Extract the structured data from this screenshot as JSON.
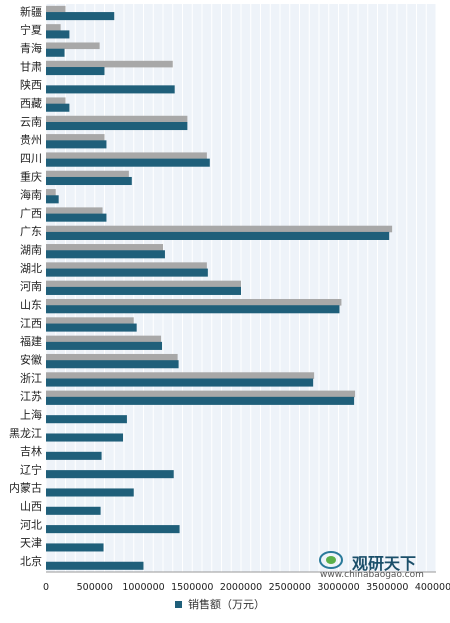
{
  "chart_data": {
    "type": "bar",
    "orientation": "horizontal",
    "categories": [
      "新疆",
      "宁夏",
      "青海",
      "甘肃",
      "陕西",
      "西藏",
      "云南",
      "贵州",
      "四川",
      "重庆",
      "海南",
      "广西",
      "广东",
      "湖南",
      "湖北",
      "河南",
      "山东",
      "江西",
      "福建",
      "安徽",
      "浙江",
      "江苏",
      "上海",
      "黑龙江",
      "吉林",
      "辽宁",
      "内蒙古",
      "山西",
      "河北",
      "天津",
      "北京"
    ],
    "series": [
      {
        "name": "销售额（万元）",
        "color": "#1f5f7a",
        "values": [
          700000,
          240000,
          190000,
          600000,
          1320000,
          240000,
          1450000,
          620000,
          1680000,
          880000,
          130000,
          620000,
          3520000,
          1220000,
          1660000,
          2000000,
          3010000,
          930000,
          1190000,
          1360000,
          2740000,
          3160000,
          830000,
          790000,
          570000,
          1310000,
          900000,
          560000,
          1370000,
          590000,
          1000000
        ]
      },
      {
        "color": "#a8a8a8",
        "values": [
          200000,
          150000,
          550000,
          1300000,
          null,
          200000,
          1450000,
          600000,
          1650000,
          850000,
          100000,
          580000,
          3550000,
          1200000,
          1650000,
          2000000,
          3030000,
          900000,
          1180000,
          1350000,
          2750000,
          3170000,
          null,
          null,
          null,
          null,
          null,
          null,
          null,
          null,
          null
        ]
      }
    ],
    "xlim": [
      0,
      4000000
    ],
    "xticks": [
      "0",
      "500000",
      "1000000",
      "1500000",
      "2000000",
      "2500000",
      "3000000",
      "3500000",
      "4000000"
    ],
    "legend": {
      "position": "bottom-center",
      "label": "销售额（万元）"
    },
    "grid": true
  },
  "watermark": {
    "brand": "观研天下",
    "url": "www.chinabaogao.com"
  }
}
